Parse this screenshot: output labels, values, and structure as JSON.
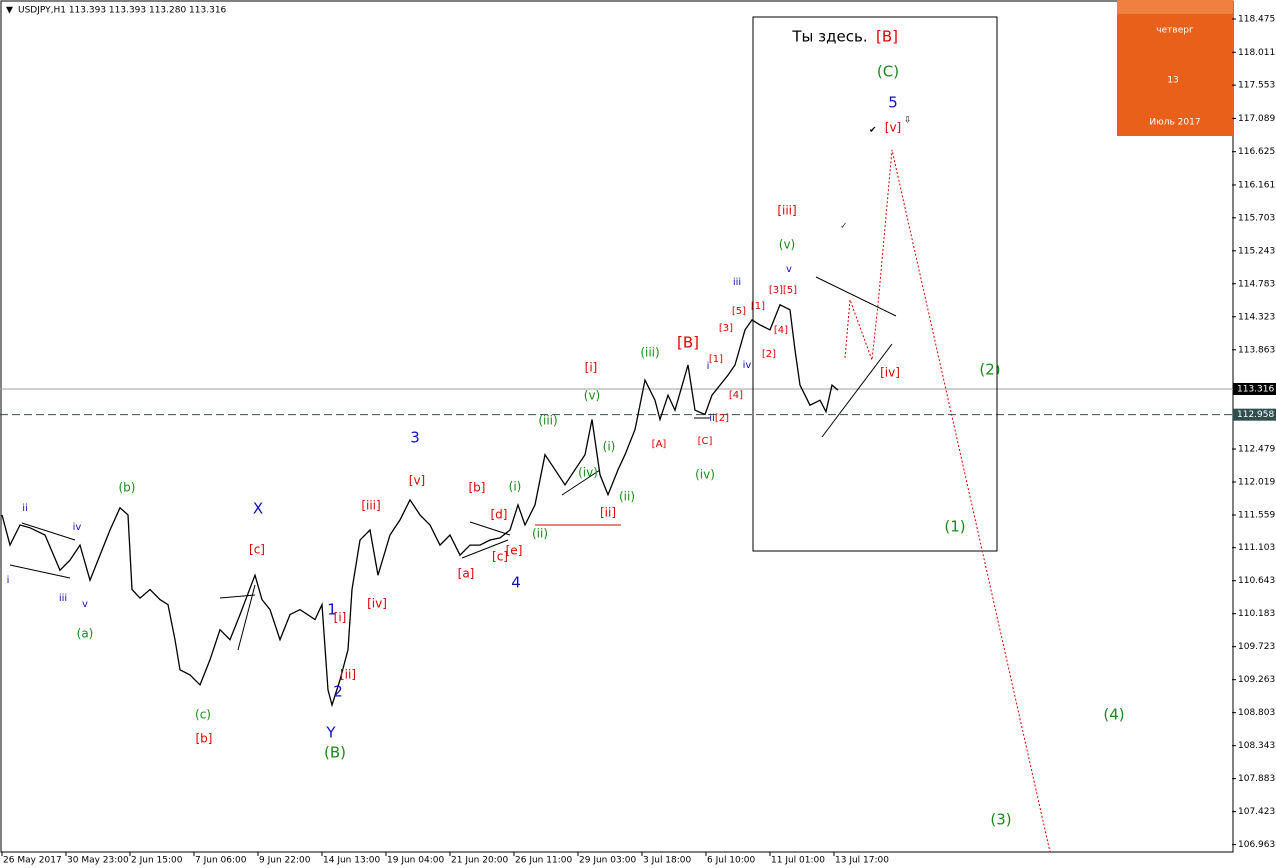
{
  "chart_data": {
    "type": "line",
    "title": "USDJPY,H1  113.393 113.393 113.280 113.316",
    "xlim": [
      0,
      616
    ],
    "ylim": [
      106.86,
      118.74
    ],
    "xticks": [
      {
        "value": 1,
        "label": "26 May 2017"
      },
      {
        "value": 33,
        "label": "30 May 23:00"
      },
      {
        "value": 65,
        "label": "2 Jun 15:00"
      },
      {
        "value": 97,
        "label": "7 Jun 06:00"
      },
      {
        "value": 129,
        "label": "9 Jun 22:00"
      },
      {
        "value": 161,
        "label": "14 Jun 13:00"
      },
      {
        "value": 193,
        "label": "19 Jun 04:00"
      },
      {
        "value": 225,
        "label": "21 Jun 20:00"
      },
      {
        "value": 257,
        "label": "26 Jun 11:00"
      },
      {
        "value": 289,
        "label": "29 Jun 03:00"
      },
      {
        "value": 321,
        "label": "3 Jul 18:00"
      },
      {
        "value": 353,
        "label": "6 Jul 10:00"
      },
      {
        "value": 385,
        "label": "11 Jul 01:00"
      },
      {
        "value": 417,
        "label": "13 Jul 17:00"
      }
    ],
    "yticks": [
      118.475,
      118.011,
      117.553,
      117.089,
      116.625,
      116.161,
      115.703,
      115.243,
      114.783,
      114.323,
      113.863,
      112.479,
      112.019,
      111.559,
      111.103,
      110.643,
      110.183,
      109.723,
      109.263,
      108.803,
      108.343,
      107.883,
      107.423,
      106.963
    ],
    "series": [
      {
        "color": "#000000",
        "x": [
          1,
          5,
          10,
          15,
          22.5,
          30,
          35,
          40,
          45,
          50,
          55,
          60,
          64,
          66,
          70,
          75,
          80,
          84,
          87.5,
          90,
          95,
          100,
          105,
          110,
          115,
          120,
          127.5,
          131,
          135,
          140,
          145,
          150,
          157.5,
          161,
          164,
          166,
          170,
          174,
          176,
          180,
          185,
          189,
          195,
          200,
          205,
          210,
          215,
          220,
          225,
          230,
          235,
          240,
          245,
          250,
          255,
          259,
          262.5,
          267.5,
          272.5,
          277.5,
          282.5,
          287.5,
          292.5,
          296,
          300,
          304,
          309,
          312.5,
          317.5,
          322.5,
          327.5,
          330,
          334,
          337.5,
          344,
          347.5,
          352.5,
          356,
          360,
          364,
          367.5,
          372.5,
          376,
          380,
          385,
          390,
          395,
          397.5,
          400,
          405,
          410,
          413,
          416,
          419
        ],
        "values": [
          111.56,
          111.14,
          111.42,
          111.38,
          111.28,
          110.79,
          110.93,
          111.14,
          110.65,
          111.0,
          111.35,
          111.66,
          111.56,
          110.52,
          110.4,
          110.52,
          110.38,
          110.31,
          109.82,
          109.4,
          109.33,
          109.19,
          109.54,
          109.96,
          109.82,
          110.17,
          110.72,
          110.38,
          110.24,
          109.82,
          110.17,
          110.24,
          110.1,
          110.31,
          109.12,
          108.91,
          109.26,
          109.68,
          110.52,
          111.21,
          111.35,
          110.72,
          111.28,
          111.49,
          111.77,
          111.56,
          111.42,
          111.14,
          111.28,
          111.0,
          111.14,
          111.14,
          111.21,
          111.24,
          111.35,
          111.7,
          111.42,
          111.7,
          112.4,
          112.19,
          111.98,
          112.19,
          112.4,
          112.89,
          112.12,
          111.84,
          112.19,
          112.4,
          112.75,
          113.44,
          113.16,
          112.89,
          113.23,
          113.02,
          113.65,
          113.02,
          112.96,
          113.23,
          113.37,
          113.51,
          113.65,
          114.14,
          114.28,
          114.21,
          114.14,
          114.49,
          114.42,
          113.86,
          113.37,
          113.09,
          113.16,
          113.0,
          113.37,
          113.3
        ]
      },
      {
        "color": "#e00000",
        "dashed": true,
        "x": [
          422.5,
          425,
          436,
          439,
          446,
          525
        ],
        "values": [
          113.75,
          114.56,
          113.72,
          114.49,
          116.65,
          106.86
        ]
      }
    ],
    "price_lines": [
      {
        "value": 113.316,
        "color": "#a0a0a0",
        "label_bg": "#000000"
      },
      {
        "value": 112.958,
        "color": "#2f4f4f",
        "dashed": true,
        "label_bg": "#2f4f4f"
      }
    ],
    "annotations": [
      {
        "text": "ii",
        "color": "#1010c0"
      },
      {
        "text": "iv",
        "color": "#1010c0"
      },
      {
        "text": "i",
        "color": "#1010c0"
      },
      {
        "text": "iii",
        "color": "#1010c0"
      },
      {
        "text": "v",
        "color": "#1010c0"
      },
      {
        "text": "(a)",
        "color": "#1a8a1a"
      },
      {
        "text": "(b)",
        "color": "#1a8a1a"
      },
      {
        "text": "(c)",
        "color": "#1a8a1a"
      },
      {
        "text": "[b]",
        "color": "#e00000"
      },
      {
        "text": "X",
        "color": "#1010c0"
      },
      {
        "text": "[c]",
        "color": "#e00000"
      },
      {
        "text": "[iii]",
        "color": "#e00000"
      },
      {
        "text": "[v]",
        "color": "#e00000"
      },
      {
        "text": "3",
        "color": "#1010c0"
      },
      {
        "text": "[i]",
        "color": "#e00000"
      },
      {
        "text": "[iv]",
        "color": "#e00000"
      },
      {
        "text": "[ii]",
        "color": "#e00000"
      },
      {
        "text": "1",
        "color": "#1010c0"
      },
      {
        "text": "2",
        "color": "#1010c0"
      },
      {
        "text": "Y",
        "color": "#1010c0"
      },
      {
        "text": "(B)",
        "color": "#1a8a1a"
      },
      {
        "text": "[b]",
        "color": "#e00000"
      },
      {
        "text": "[d]",
        "color": "#e00000"
      },
      {
        "text": "[a]",
        "color": "#e00000"
      },
      {
        "text": "[c]",
        "color": "#e00000"
      },
      {
        "text": "[e]",
        "color": "#e00000"
      },
      {
        "text": "4",
        "color": "#1010c0"
      },
      {
        "text": "(i)",
        "color": "#1a8a1a"
      },
      {
        "text": "(ii)",
        "color": "#1a8a1a"
      },
      {
        "text": "(iii)",
        "color": "#1a8a1a"
      },
      {
        "text": "(v)",
        "color": "#1a8a1a"
      },
      {
        "text": "[i]",
        "color": "#e00000"
      },
      {
        "text": "(iv)",
        "color": "#1a8a1a"
      },
      {
        "text": "[ii]",
        "color": "#e00000"
      },
      {
        "text": "(ii)",
        "color": "#1a8a1a"
      },
      {
        "text": "(i)",
        "color": "#1a8a1a"
      },
      {
        "text": "[A]",
        "color": "#e00000"
      },
      {
        "text": "(iii)",
        "color": "#1a8a1a"
      },
      {
        "text": "[B]",
        "color": "#e00000"
      },
      {
        "text": "[C]",
        "color": "#e00000"
      },
      {
        "text": "(iv)",
        "color": "#1a8a1a"
      },
      {
        "text": "i",
        "color": "#1010c0"
      },
      {
        "text": "[1]",
        "color": "#e00000"
      },
      {
        "text": "[3]",
        "color": "#e00000"
      },
      {
        "text": "[5]",
        "color": "#e00000"
      },
      {
        "text": "[4]",
        "color": "#e00000"
      },
      {
        "text": "ii",
        "color": "#1010c0"
      },
      {
        "text": "[2]",
        "color": "#e00000"
      },
      {
        "text": "iv",
        "color": "#1010c0"
      },
      {
        "text": "iii",
        "color": "#1010c0"
      },
      {
        "text": "[1]",
        "color": "#e00000"
      },
      {
        "text": "[3]",
        "color": "#e00000"
      },
      {
        "text": "[5]",
        "color": "#e00000"
      },
      {
        "text": "[4]",
        "color": "#e00000"
      },
      {
        "text": "[2]",
        "color": "#e00000"
      },
      {
        "text": "v",
        "color": "#1010c0"
      },
      {
        "text": "(v)",
        "color": "#1a8a1a"
      },
      {
        "text": "[iii]",
        "color": "#e00000"
      },
      {
        "text": "[iv]",
        "color": "#e00000"
      },
      {
        "text": "(2)",
        "color": "#1a8a1a"
      },
      {
        "text": "(1)",
        "color": "#1a8a1a"
      },
      {
        "text": "(4)",
        "color": "#1a8a1a"
      },
      {
        "text": "(3)",
        "color": "#1a8a1a"
      },
      {
        "text": "Ты здесь.",
        "color": "#000000"
      },
      {
        "text": "[B]",
        "color": "#e00000"
      },
      {
        "text": "(C)",
        "color": "#1a8a1a"
      },
      {
        "text": "5",
        "color": "#1010c0"
      },
      {
        "text": "[v]",
        "color": "#e00000"
      }
    ],
    "calendar": {
      "weekday": "четверг",
      "day": "13",
      "month": "Июль 2017"
    }
  }
}
